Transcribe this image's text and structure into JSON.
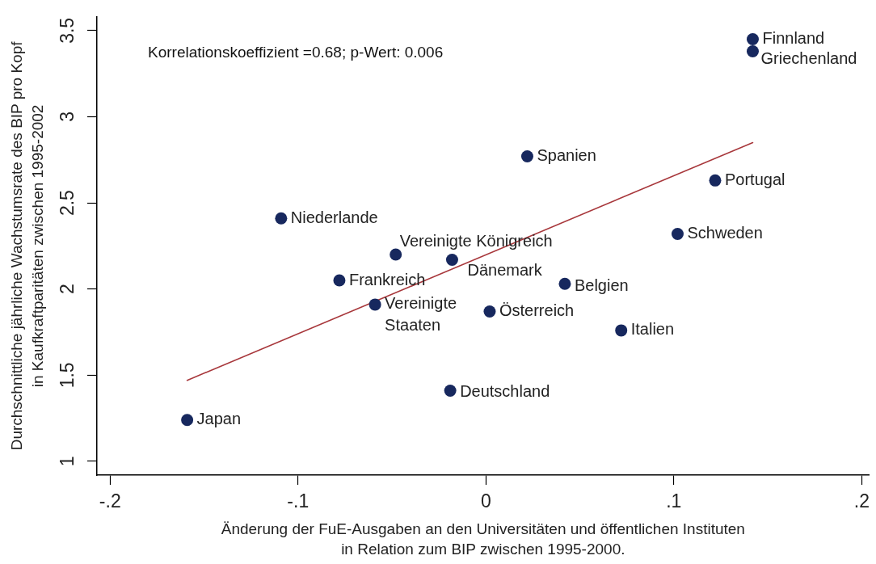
{
  "chart_data": {
    "type": "scatter",
    "xlabel": "Änderung der FuE-Ausgaben an den Universitäten und öffentlichen Instituten\nin Relation zum BIP zwischen 1995-2000.",
    "ylabel": "Durchschnittliche jährliche Wachstumsrate des BIP pro Kopf\nin Kaufkraftparitäten zwischen 1995-2002",
    "annotations": [
      "Korrelationskoeffizient =0.68; p-Wert: 0.006"
    ],
    "xlim": [
      -0.207,
      0.204
    ],
    "xticks": [
      {
        "value": -0.2,
        "label": "-.2"
      },
      {
        "value": -0.1,
        "label": "-.1"
      },
      0,
      {
        "value": 0.1,
        "label": ".1"
      },
      {
        "value": 0.2,
        "label": ".2"
      }
    ],
    "ylim": [
      0.92,
      3.58
    ],
    "yticks": [
      1,
      1.5,
      2,
      2.5,
      3,
      3.5
    ],
    "grid": false,
    "legend": false,
    "marker": "circle",
    "series": [
      {
        "name": "Finnland",
        "color": "#17285e",
        "x": [
          0.142
        ],
        "values": [
          3.45
        ]
      },
      {
        "name": "Griechenland",
        "color": "#17285e",
        "x": [
          0.142
        ],
        "values": [
          3.38
        ]
      },
      {
        "name": "Spanien",
        "color": "#17285e",
        "x": [
          0.022
        ],
        "values": [
          2.77
        ]
      },
      {
        "name": "Portugal",
        "color": "#17285e",
        "x": [
          0.122
        ],
        "values": [
          2.63
        ]
      },
      {
        "name": "Niederlande",
        "color": "#17285e",
        "x": [
          -0.109
        ],
        "values": [
          2.41
        ]
      },
      {
        "name": "Schweden",
        "color": "#17285e",
        "x": [
          0.102
        ],
        "values": [
          2.32
        ]
      },
      {
        "name": "Vereinigte Königreich",
        "color": "#17285e",
        "x": [
          -0.048
        ],
        "values": [
          2.2
        ]
      },
      {
        "name": "Dänemark",
        "color": "#17285e",
        "x": [
          -0.018
        ],
        "values": [
          2.17
        ]
      },
      {
        "name": "Frankreich",
        "color": "#17285e",
        "x": [
          -0.078
        ],
        "values": [
          2.05
        ]
      },
      {
        "name": "Belgien",
        "color": "#17285e",
        "x": [
          0.042
        ],
        "values": [
          2.03
        ]
      },
      {
        "name": "Vereinigte Staaten",
        "color": "#17285e",
        "x": [
          -0.059
        ],
        "values": [
          1.91
        ]
      },
      {
        "name": "Österreich",
        "color": "#17285e",
        "x": [
          0.002
        ],
        "values": [
          1.87
        ]
      },
      {
        "name": "Italien",
        "color": "#17285e",
        "x": [
          0.072
        ],
        "values": [
          1.76
        ]
      },
      {
        "name": "Deutschland",
        "color": "#17285e",
        "x": [
          -0.019
        ],
        "values": [
          1.41
        ]
      },
      {
        "name": "Japan",
        "color": "#17285e",
        "x": [
          -0.159
        ],
        "values": [
          1.24
        ]
      },
      {
        "type": "line",
        "color": "#a8383c",
        "x": [
          -0.159,
          0.142
        ],
        "values": [
          1.47,
          2.85
        ],
        "marker": "none",
        "line_style": "solid"
      }
    ]
  }
}
